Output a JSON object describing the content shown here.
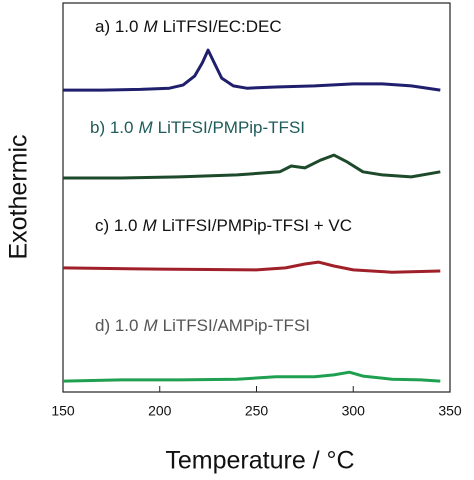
{
  "chart_data": {
    "type": "line",
    "xlabel": "Temperature / °C",
    "ylabel": "Exothermic",
    "xlim": [
      150,
      350
    ],
    "xticks": [
      150,
      200,
      250,
      300,
      350
    ],
    "ylim": [
      0,
      100
    ],
    "series": [
      {
        "label": [
          "a) 1.0",
          "M",
          "LiTFSI/EC:DEC"
        ],
        "label_color": "#111111",
        "color": "#1f1f6e",
        "x": [
          150,
          170,
          190,
          205,
          212,
          218,
          222,
          225,
          228,
          232,
          238,
          245,
          260,
          280,
          300,
          315,
          330,
          345
        ],
        "values": [
          77.6,
          77.6,
          77.8,
          78.1,
          78.9,
          81.2,
          84.6,
          87.9,
          84.8,
          80.7,
          78.7,
          78.1,
          78.4,
          78.7,
          79.2,
          79.2,
          78.7,
          77.6
        ]
      },
      {
        "label": [
          "b) 1.0",
          "M",
          "LiTFSI/PMPip-TFSI"
        ],
        "label_color": "#1f5a5a",
        "color": "#1d4a2a",
        "x": [
          150,
          180,
          210,
          240,
          262,
          268,
          275,
          283,
          290,
          297,
          305,
          315,
          330,
          345
        ],
        "values": [
          55.0,
          55.0,
          55.3,
          55.8,
          56.6,
          58.1,
          57.6,
          59.6,
          60.9,
          59.1,
          56.6,
          55.8,
          55.3,
          56.6
        ]
      },
      {
        "label": [
          "c) 1.0",
          "M",
          "LiTFSI/PMPip-TFSI + VC"
        ],
        "label_color": "#111111",
        "color": "#a0202a",
        "x": [
          150,
          200,
          250,
          265,
          275,
          282,
          290,
          300,
          320,
          345
        ],
        "values": [
          31.9,
          31.6,
          31.4,
          31.9,
          32.9,
          33.4,
          32.4,
          31.4,
          30.8,
          31.1
        ]
      },
      {
        "label": [
          "d) 1.0",
          "M",
          "LiTFSI/AMPip-TFSI"
        ],
        "label_color": "#555555",
        "color": "#1fa050",
        "x": [
          150,
          180,
          210,
          240,
          260,
          280,
          290,
          298,
          305,
          320,
          335,
          345
        ],
        "values": [
          2.8,
          3.1,
          3.1,
          3.3,
          3.9,
          3.9,
          4.4,
          5.1,
          4.1,
          3.3,
          3.1,
          2.8
        ]
      }
    ]
  }
}
